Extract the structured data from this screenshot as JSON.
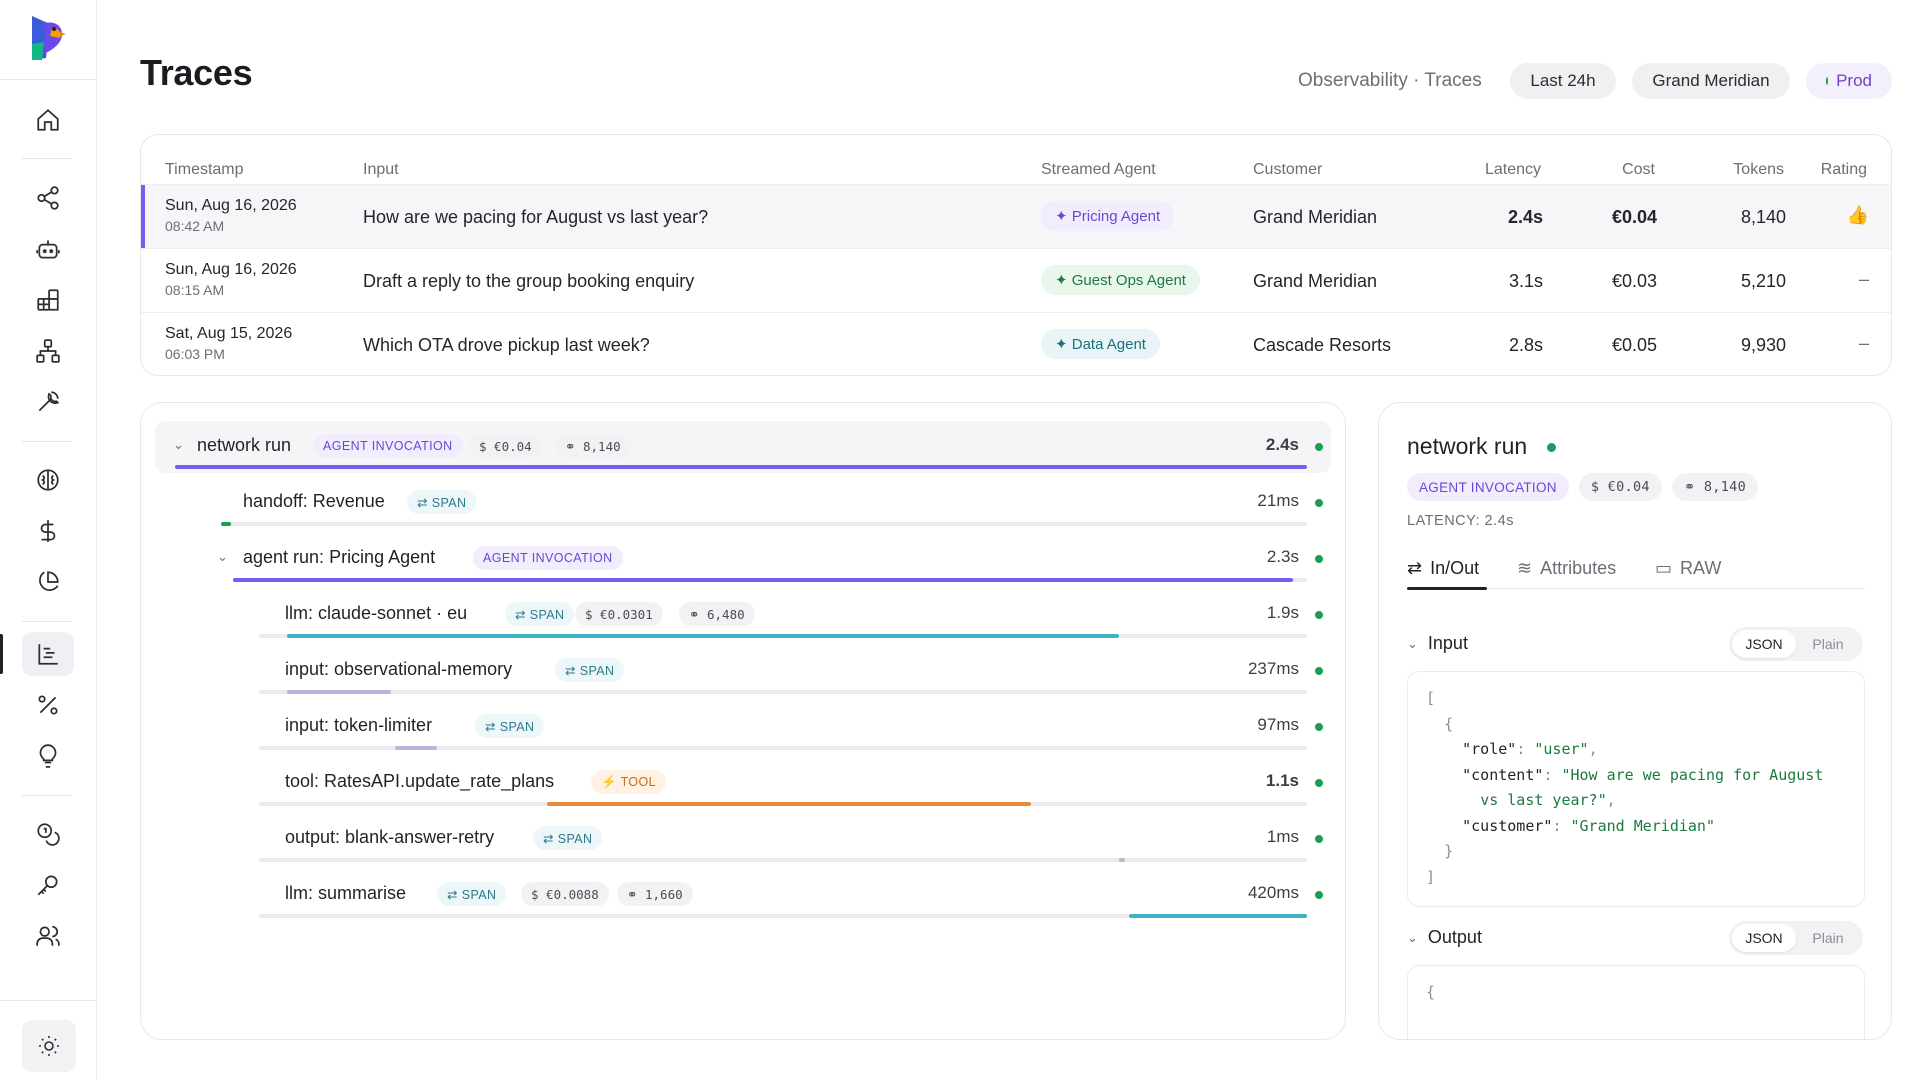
{
  "page": {
    "title": "Traces",
    "breadcrumb": "Observability · Traces",
    "time_range": "Last 24h",
    "customer": "Grand Meridian",
    "environment": "Prod"
  },
  "table": {
    "headers": {
      "timestamp": "Timestamp",
      "input": "Input",
      "agent": "Streamed Agent",
      "customer": "Customer",
      "latency": "Latency",
      "cost": "Cost",
      "tokens": "Tokens",
      "rating": "Rating"
    },
    "rows": [
      {
        "date": "Sun, Aug 16, 2026",
        "time": "08:42 AM",
        "input": "How are we pacing for August vs last year?",
        "agent": "✦ Pricing Agent",
        "customer": "Grand Meridian",
        "latency": "2.4s",
        "cost": "€0.04",
        "tokens": "8,140",
        "rating": "👍"
      },
      {
        "date": "Sun, Aug 16, 2026",
        "time": "08:15 AM",
        "input": "Draft a reply to the group booking enquiry",
        "agent": "✦ Guest Ops Agent",
        "customer": "Grand Meridian",
        "latency": "3.1s",
        "cost": "€0.03",
        "tokens": "5,210",
        "rating": "–"
      },
      {
        "date": "Sat, Aug 15, 2026",
        "time": "06:03 PM",
        "input": "Which OTA drove pickup last week?",
        "agent": "✦ Data Agent",
        "customer": "Cascade Resorts",
        "latency": "2.8s",
        "cost": "€0.05",
        "tokens": "9,930",
        "rating": "–"
      }
    ]
  },
  "tree": {
    "rows": [
      {
        "name": "network run",
        "tags": [
          "AGENT INVOCATION",
          "$ €0.04",
          "⚭ 8,140"
        ],
        "duration": "2.4s"
      },
      {
        "name": "handoff: Revenue",
        "tags": [
          "⇄ SPAN"
        ],
        "duration": "21ms"
      },
      {
        "name": "agent run: Pricing Agent",
        "tags": [
          "AGENT INVOCATION"
        ],
        "duration": "2.3s"
      },
      {
        "name": "llm: claude-sonnet · eu",
        "tags": [
          "⇄ SPAN",
          "$ €0.0301",
          "⚭ 6,480"
        ],
        "duration": "1.9s"
      },
      {
        "name": "input: observational-memory",
        "tags": [
          "⇄ SPAN"
        ],
        "duration": "237ms"
      },
      {
        "name": "input: token-limiter",
        "tags": [
          "⇄ SPAN"
        ],
        "duration": "97ms"
      },
      {
        "name": "tool: RatesAPI.update_rate_plans",
        "tags": [
          "⚡ TOOL"
        ],
        "duration": "1.1s"
      },
      {
        "name": "output: blank-answer-retry",
        "tags": [
          "⇄ SPAN"
        ],
        "duration": "1ms"
      },
      {
        "name": "llm: summarise",
        "tags": [
          "⇄ SPAN",
          "$ €0.0088",
          "⚭ 1,660"
        ],
        "duration": "420ms"
      }
    ]
  },
  "detail": {
    "title": "network run",
    "tags": [
      "AGENT INVOCATION",
      "$ €0.04",
      "⚭ 8,140"
    ],
    "latency": "LATENCY: 2.4s",
    "tabs": [
      "In/Out",
      "Attributes",
      "RAW"
    ],
    "input_label": "Input",
    "output_label": "Output",
    "format_options": [
      "JSON",
      "Plain"
    ],
    "input_json": {
      "role_key": "\"role\"",
      "role_val": "\"user\"",
      "content_key": "\"content\"",
      "content_val_1": "\"How are we pacing for August",
      "content_val_2": "vs last year?\"",
      "customer_key": "\"customer\"",
      "customer_val": "\"Grand Meridian\""
    },
    "output_preview": "{"
  },
  "colors": {
    "accent_purple": "#7c5cf0",
    "teal": "#3bb3c3",
    "tool_orange": "#e8883a",
    "status_green": "#1f9d55"
  },
  "icons": [
    "home-icon",
    "share-icon",
    "bot-icon",
    "blocks-icon",
    "network-icon",
    "wrench-icon",
    "brain-icon",
    "dollar-icon",
    "pie-chart-icon",
    "traces-icon",
    "percent-icon",
    "lightbulb-icon",
    "coins-icon",
    "key-icon",
    "users-icon",
    "sun-icon"
  ]
}
